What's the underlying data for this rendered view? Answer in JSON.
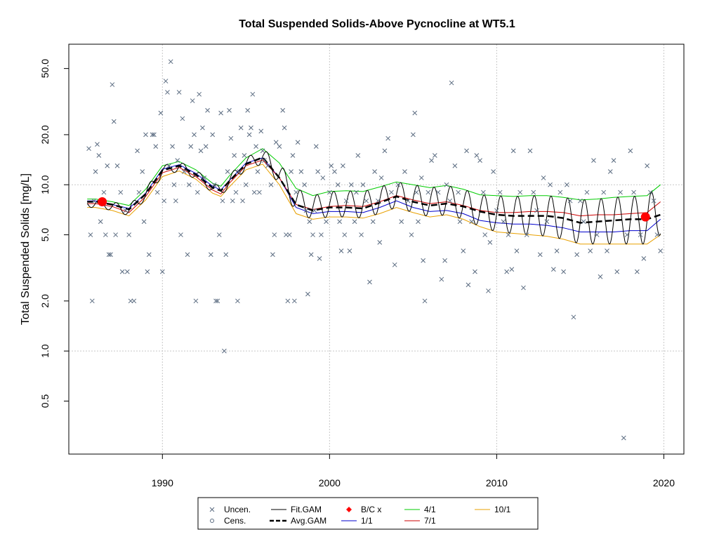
{
  "chart_data": {
    "type": "scatter",
    "title": "Total Suspended Solids-Above Pycnocline at WT5.1",
    "xlabel": "",
    "ylabel": "Total Suspended Solids [mg/L]",
    "xlim": [
      1984.4,
      2021.2
    ],
    "ylim_log": [
      0.24,
      70
    ],
    "log_y": true,
    "grid": true,
    "x_ticks": [
      1990,
      2000,
      2010,
      2020
    ],
    "x_tick_labels": [
      "1990",
      "2000",
      "2010",
      "2020"
    ],
    "y_ticks": [
      0.5,
      1.0,
      2.0,
      5.0,
      10.0,
      20.0,
      50.0
    ],
    "y_tick_labels": [
      "0.5",
      "1.0",
      "2.0",
      "5.0",
      "10.0",
      "20.0",
      "50.0"
    ],
    "colors": {
      "observations": "#5a6b80",
      "fit": "#000000",
      "avg": "#000000",
      "bc": "#ff0000",
      "jan": "#0000cc",
      "apr": "#00cc00",
      "jul": "#cc0000",
      "oct": "#e8a000"
    },
    "series_smooth": {
      "years": [
        1985.5,
        1986,
        1987,
        1988,
        1989,
        1990,
        1991,
        1992,
        1993,
        1993.5,
        1994,
        1995,
        1996,
        1997,
        1998,
        1999,
        2000,
        2001,
        2002,
        2003,
        2004,
        2005,
        2006,
        2007,
        2008,
        2009,
        2010,
        2011,
        2012,
        2013,
        2014,
        2015,
        2016,
        2017,
        2018,
        2019,
        2019.8
      ],
      "avg": [
        7.9,
        7.9,
        7.6,
        7.1,
        8.8,
        12.2,
        13.0,
        11.5,
        9.6,
        9.2,
        10.5,
        13.3,
        14.6,
        11.0,
        7.6,
        7.0,
        7.3,
        7.3,
        7.2,
        7.8,
        8.5,
        7.9,
        7.5,
        7.7,
        7.4,
        6.9,
        6.6,
        6.5,
        6.5,
        6.5,
        6.3,
        5.9,
        6.0,
        6.1,
        6.2,
        6.2,
        6.6
      ],
      "apr": [
        8.2,
        8.2,
        7.9,
        7.5,
        9.4,
        13.0,
        13.8,
        12.3,
        10.2,
        9.8,
        11.3,
        14.5,
        16.5,
        13.5,
        9.5,
        8.6,
        9.1,
        9.2,
        9.1,
        9.7,
        10.4,
        10.0,
        9.6,
        9.9,
        9.4,
        8.7,
        8.6,
        8.5,
        8.6,
        8.6,
        8.4,
        8.1,
        8.2,
        8.4,
        8.5,
        8.6,
        10.0
      ],
      "jul": [
        7.7,
        7.7,
        7.4,
        6.8,
        8.5,
        11.8,
        12.7,
        11.2,
        9.3,
        8.8,
        10.2,
        13.0,
        14.1,
        11.0,
        7.6,
        7.1,
        7.4,
        7.5,
        7.4,
        7.9,
        8.6,
        8.1,
        7.7,
        7.9,
        7.5,
        7.0,
        6.8,
        6.8,
        6.9,
        6.9,
        6.8,
        6.5,
        6.6,
        6.6,
        6.7,
        6.8,
        7.9
      ],
      "jan": [
        8.0,
        8.0,
        7.6,
        7.2,
        8.9,
        12.4,
        13.2,
        11.7,
        9.8,
        9.3,
        10.6,
        13.5,
        14.5,
        11.0,
        7.3,
        6.7,
        6.9,
        6.9,
        6.8,
        7.3,
        8.0,
        7.3,
        6.9,
        7.0,
        6.7,
        6.1,
        5.9,
        5.8,
        5.8,
        5.7,
        5.5,
        5.2,
        5.2,
        5.2,
        5.3,
        5.3,
        6.2
      ],
      "oct": [
        7.3,
        7.3,
        7.0,
        6.5,
        8.1,
        11.2,
        12.1,
        10.8,
        8.9,
        8.5,
        9.7,
        12.3,
        13.3,
        10.0,
        6.7,
        6.2,
        6.4,
        6.4,
        6.3,
        6.7,
        7.3,
        6.8,
        6.4,
        6.6,
        6.2,
        5.6,
        5.2,
        5.1,
        5.0,
        4.9,
        4.7,
        4.4,
        4.4,
        4.4,
        4.4,
        4.4,
        5.0
      ]
    },
    "bc_points": [
      {
        "x": 1986.4,
        "y": 7.9
      },
      {
        "x": 2018.9,
        "y": 6.4
      }
    ],
    "observations": [
      [
        1985.6,
        16.5
      ],
      [
        1985.7,
        5.0
      ],
      [
        1985.8,
        2.0
      ],
      [
        1985.9,
        8.0
      ],
      [
        1986.0,
        12.0
      ],
      [
        1986.1,
        17.5
      ],
      [
        1986.2,
        15.0
      ],
      [
        1986.3,
        6.0
      ],
      [
        1986.5,
        9.0
      ],
      [
        1986.6,
        5.0
      ],
      [
        1986.7,
        13.0
      ],
      [
        1986.8,
        3.8
      ],
      [
        1986.9,
        3.8
      ],
      [
        1987.0,
        40.0
      ],
      [
        1987.1,
        24.0
      ],
      [
        1987.2,
        5.0
      ],
      [
        1987.3,
        13.0
      ],
      [
        1987.5,
        9.0
      ],
      [
        1987.6,
        3.0
      ],
      [
        1987.8,
        7.0
      ],
      [
        1987.9,
        3.0
      ],
      [
        1988.0,
        5.0
      ],
      [
        1988.1,
        2.0
      ],
      [
        1988.3,
        2.0
      ],
      [
        1988.5,
        16.0
      ],
      [
        1988.6,
        9.0
      ],
      [
        1988.8,
        12.0
      ],
      [
        1988.9,
        6.0
      ],
      [
        1989.0,
        20.0
      ],
      [
        1989.1,
        3.0
      ],
      [
        1989.2,
        3.8
      ],
      [
        1989.4,
        20.0
      ],
      [
        1989.5,
        20.0
      ],
      [
        1989.6,
        17.0
      ],
      [
        1989.7,
        9.0
      ],
      [
        1989.9,
        27.0
      ],
      [
        1990.0,
        3.0
      ],
      [
        1990.1,
        8.0
      ],
      [
        1990.2,
        42.0
      ],
      [
        1990.3,
        36.0
      ],
      [
        1990.4,
        13.0
      ],
      [
        1990.5,
        55.0
      ],
      [
        1990.6,
        17.0
      ],
      [
        1990.7,
        10.0
      ],
      [
        1990.8,
        8.0
      ],
      [
        1990.9,
        14.0
      ],
      [
        1991.0,
        36.0
      ],
      [
        1991.1,
        5.0
      ],
      [
        1991.2,
        25.0
      ],
      [
        1991.3,
        12.0
      ],
      [
        1991.5,
        3.8
      ],
      [
        1991.6,
        10.0
      ],
      [
        1991.7,
        17.0
      ],
      [
        1991.8,
        32.0
      ],
      [
        1991.9,
        20.0
      ],
      [
        1992.0,
        2.0
      ],
      [
        1992.1,
        9.0
      ],
      [
        1992.2,
        35.0
      ],
      [
        1992.3,
        16.0
      ],
      [
        1992.4,
        22.0
      ],
      [
        1992.5,
        11.0
      ],
      [
        1992.6,
        17.0
      ],
      [
        1992.7,
        28.0
      ],
      [
        1992.9,
        3.8
      ],
      [
        1993.0,
        20.0
      ],
      [
        1993.1,
        10.0
      ],
      [
        1993.2,
        2.0
      ],
      [
        1993.3,
        2.0
      ],
      [
        1993.4,
        5.0
      ],
      [
        1993.5,
        27.0
      ],
      [
        1993.6,
        8.0
      ],
      [
        1993.7,
        1.0
      ],
      [
        1993.8,
        3.8
      ],
      [
        1993.9,
        12.0
      ],
      [
        1994.0,
        28.0
      ],
      [
        1994.1,
        19.0
      ],
      [
        1994.2,
        8.0
      ],
      [
        1994.3,
        15.0
      ],
      [
        1994.4,
        9.0
      ],
      [
        1994.5,
        2.0
      ],
      [
        1994.6,
        12.0
      ],
      [
        1994.7,
        22.0
      ],
      [
        1994.8,
        8.0
      ],
      [
        1994.9,
        15.0
      ],
      [
        1995.0,
        10.0
      ],
      [
        1995.1,
        28.0
      ],
      [
        1995.2,
        20.0
      ],
      [
        1995.3,
        22.0
      ],
      [
        1995.4,
        35.0
      ],
      [
        1995.5,
        9.0
      ],
      [
        1995.6,
        17.0
      ],
      [
        1995.7,
        12.0
      ],
      [
        1995.8,
        9.0
      ],
      [
        1995.9,
        21.0
      ],
      [
        1996.0,
        16.0
      ],
      [
        1996.1,
        14.0
      ],
      [
        1996.3,
        13.0
      ],
      [
        1996.5,
        10.0
      ],
      [
        1996.6,
        3.8
      ],
      [
        1996.7,
        5.0
      ],
      [
        1996.8,
        18.0
      ],
      [
        1997.0,
        17.0
      ],
      [
        1997.2,
        28.0
      ],
      [
        1997.3,
        22.0
      ],
      [
        1997.4,
        5.0
      ],
      [
        1997.5,
        2.0
      ],
      [
        1997.6,
        5.0
      ],
      [
        1997.7,
        12.0
      ],
      [
        1997.8,
        15.0
      ],
      [
        1997.9,
        2.0
      ],
      [
        1998.0,
        9.0
      ],
      [
        1998.1,
        18.0
      ],
      [
        1998.3,
        12.0
      ],
      [
        1998.5,
        10.0
      ],
      [
        1998.6,
        7.0
      ],
      [
        1998.7,
        2.2
      ],
      [
        1998.8,
        6.0
      ],
      [
        1998.9,
        3.8
      ],
      [
        1999.0,
        5.0
      ],
      [
        1999.1,
        7.0
      ],
      [
        1999.2,
        17.0
      ],
      [
        1999.3,
        12.0
      ],
      [
        1999.4,
        3.6
      ],
      [
        1999.5,
        5.0
      ],
      [
        1999.6,
        11.0
      ],
      [
        1999.8,
        6.0
      ],
      [
        2000.0,
        9.0
      ],
      [
        2000.1,
        13.0
      ],
      [
        2000.3,
        12.0
      ],
      [
        2000.5,
        10.0
      ],
      [
        2000.6,
        6.0
      ],
      [
        2000.7,
        4.0
      ],
      [
        2000.8,
        13.0
      ],
      [
        2000.9,
        5.0
      ],
      [
        2001.0,
        8.0
      ],
      [
        2001.2,
        4.0
      ],
      [
        2001.3,
        10.0
      ],
      [
        2001.5,
        6.0
      ],
      [
        2001.6,
        9.0
      ],
      [
        2001.7,
        15.0
      ],
      [
        2001.9,
        5.0
      ],
      [
        2002.0,
        10.0
      ],
      [
        2002.2,
        8.0
      ],
      [
        2002.4,
        2.6
      ],
      [
        2002.6,
        6.0
      ],
      [
        2002.7,
        12.0
      ],
      [
        2002.9,
        8.0
      ],
      [
        2003.0,
        4.5
      ],
      [
        2003.1,
        11.0
      ],
      [
        2003.3,
        16.0
      ],
      [
        2003.5,
        19.0
      ],
      [
        2003.7,
        9.0
      ],
      [
        2003.9,
        3.3
      ],
      [
        2004.1,
        10.0
      ],
      [
        2004.3,
        6.0
      ],
      [
        2004.5,
        12.0
      ],
      [
        2004.7,
        8.0
      ],
      [
        2004.9,
        5.0
      ],
      [
        2005.0,
        20.0
      ],
      [
        2005.1,
        27.0
      ],
      [
        2005.2,
        9.0
      ],
      [
        2005.3,
        6.0
      ],
      [
        2005.5,
        11.0
      ],
      [
        2005.6,
        3.5
      ],
      [
        2005.7,
        2.0
      ],
      [
        2005.9,
        9.0
      ],
      [
        2006.1,
        14.0
      ],
      [
        2006.3,
        15.0
      ],
      [
        2006.5,
        9.0
      ],
      [
        2006.7,
        2.7
      ],
      [
        2006.9,
        3.5
      ],
      [
        2007.0,
        10.0
      ],
      [
        2007.2,
        8.0
      ],
      [
        2007.3,
        41.0
      ],
      [
        2007.5,
        13.0
      ],
      [
        2007.7,
        9.0
      ],
      [
        2007.8,
        6.0
      ],
      [
        2008.0,
        4.0
      ],
      [
        2008.2,
        16.0
      ],
      [
        2008.3,
        2.5
      ],
      [
        2008.5,
        6.0
      ],
      [
        2008.7,
        3.0
      ],
      [
        2008.8,
        15.0
      ],
      [
        2009.0,
        14.0
      ],
      [
        2009.2,
        9.0
      ],
      [
        2009.3,
        5.0
      ],
      [
        2009.5,
        2.3
      ],
      [
        2009.6,
        4.5
      ],
      [
        2009.8,
        12.0
      ],
      [
        2010.0,
        7.0
      ],
      [
        2010.2,
        9.0
      ],
      [
        2010.4,
        6.0
      ],
      [
        2010.6,
        3.0
      ],
      [
        2010.7,
        5.0
      ],
      [
        2010.9,
        3.1
      ],
      [
        2011.0,
        16.0
      ],
      [
        2011.2,
        4.0
      ],
      [
        2011.4,
        9.0
      ],
      [
        2011.6,
        2.4
      ],
      [
        2011.8,
        5.0
      ],
      [
        2012.0,
        16.0
      ],
      [
        2012.2,
        9.0
      ],
      [
        2012.4,
        7.0
      ],
      [
        2012.6,
        3.8
      ],
      [
        2012.8,
        11.0
      ],
      [
        2013.0,
        6.0
      ],
      [
        2013.2,
        10.0
      ],
      [
        2013.4,
        3.1
      ],
      [
        2013.6,
        4.0
      ],
      [
        2013.8,
        9.0
      ],
      [
        2014.0,
        3.0
      ],
      [
        2014.2,
        10.0
      ],
      [
        2014.4,
        8.0
      ],
      [
        2014.6,
        1.6
      ],
      [
        2014.8,
        3.8
      ],
      [
        2015.0,
        8.0
      ],
      [
        2015.2,
        6.0
      ],
      [
        2015.4,
        9.0
      ],
      [
        2015.6,
        4.0
      ],
      [
        2015.8,
        14.0
      ],
      [
        2016.0,
        5.0
      ],
      [
        2016.2,
        2.8
      ],
      [
        2016.4,
        9.0
      ],
      [
        2016.6,
        4.0
      ],
      [
        2016.8,
        12.0
      ],
      [
        2017.0,
        14.0
      ],
      [
        2017.2,
        3.0
      ],
      [
        2017.4,
        9.0
      ],
      [
        2017.6,
        0.3
      ],
      [
        2017.8,
        5.0
      ],
      [
        2018.0,
        16.0
      ],
      [
        2018.2,
        9.0
      ],
      [
        2018.4,
        3.0
      ],
      [
        2018.6,
        5.0
      ],
      [
        2018.8,
        3.6
      ],
      [
        2019.0,
        13.0
      ],
      [
        2019.2,
        9.0
      ],
      [
        2019.4,
        8.0
      ],
      [
        2019.6,
        5.0
      ],
      [
        2019.8,
        4.0
      ]
    ],
    "legend": {
      "items": [
        {
          "label": "Uncen.",
          "kind": "x"
        },
        {
          "label": "Cens.",
          "kind": "circle"
        },
        {
          "label": "Fit.GAM",
          "kind": "line",
          "color": "#000000"
        },
        {
          "label": "Avg.GAM",
          "kind": "dash",
          "color": "#000000"
        },
        {
          "label": "B/C x",
          "kind": "diamond",
          "color": "#ff0000"
        },
        {
          "label": "1/1",
          "kind": "line",
          "color": "#0000cc"
        },
        {
          "label": "4/1",
          "kind": "line",
          "color": "#00cc00"
        },
        {
          "label": "7/1",
          "kind": "line",
          "color": "#cc0000"
        },
        {
          "label": "10/1",
          "kind": "line",
          "color": "#e8a000"
        }
      ]
    }
  }
}
